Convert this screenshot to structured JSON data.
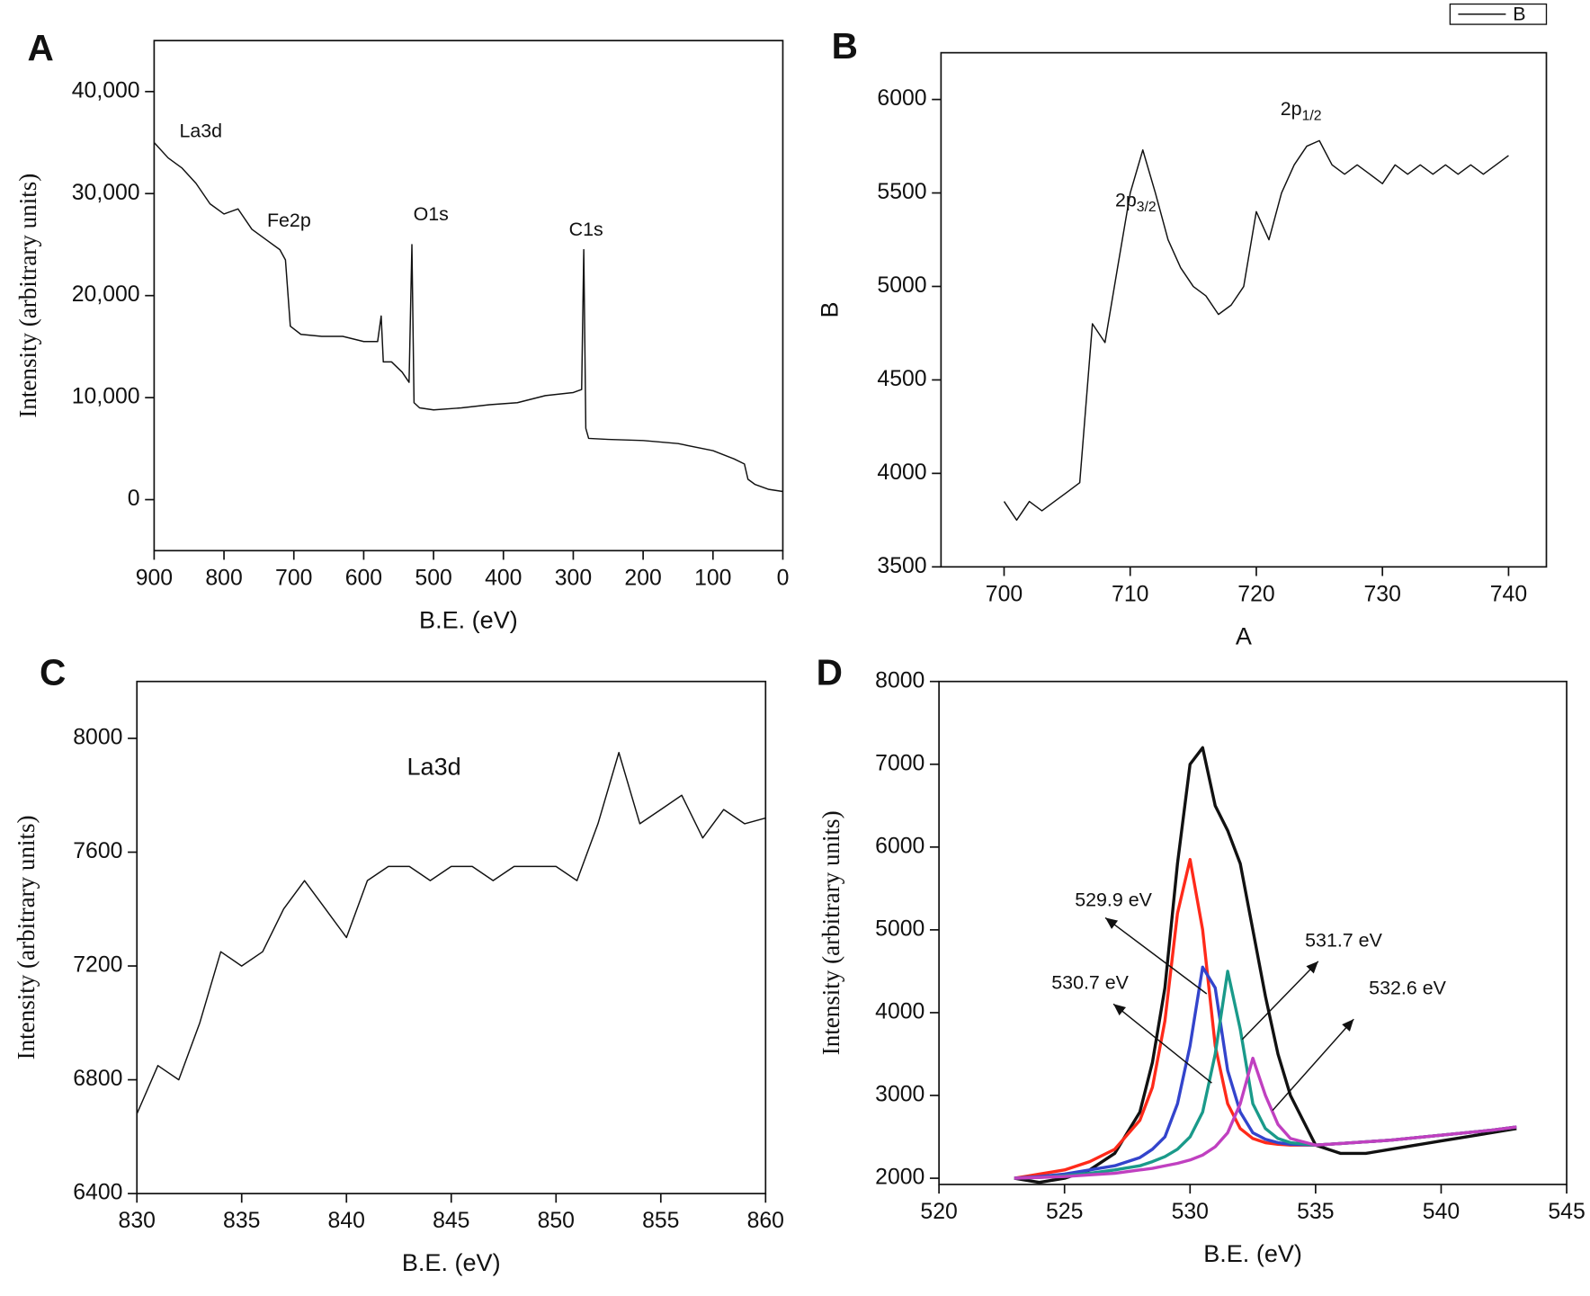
{
  "chart_data": [
    {
      "type": "line",
      "panel_label": "A",
      "xlabel": "B.E. (eV)",
      "ylabel": "Intensity (arbitrary units)",
      "xlim": [
        900,
        0
      ],
      "xticks": [
        900,
        800,
        700,
        600,
        500,
        400,
        300,
        200,
        100,
        0
      ],
      "ylim": [
        -5000,
        45000
      ],
      "yticks": [
        0,
        {
          "value": 10000,
          "label": "10,000"
        },
        {
          "value": 20000,
          "label": "20,000"
        },
        {
          "value": 30000,
          "label": "30,000"
        },
        {
          "value": 40000,
          "label": "40,000"
        }
      ],
      "x": [
        900,
        880,
        860,
        840,
        820,
        800,
        780,
        760,
        740,
        720,
        712,
        705,
        690,
        660,
        630,
        600,
        580,
        575,
        572,
        560,
        545,
        535,
        531,
        528,
        520,
        500,
        460,
        420,
        380,
        340,
        300,
        288,
        285,
        282,
        278,
        250,
        200,
        150,
        100,
        70,
        55,
        50,
        40,
        20,
        0
      ],
      "series": [
        {
          "color": "#111111",
          "values": [
            35000,
            33500,
            32500,
            31000,
            29000,
            28000,
            28500,
            26500,
            25500,
            24500,
            23500,
            17000,
            16200,
            16000,
            16000,
            15500,
            15500,
            18000,
            13500,
            13500,
            12500,
            11500,
            25000,
            9500,
            9000,
            8800,
            9000,
            9300,
            9500,
            10200,
            10500,
            10800,
            24500,
            7000,
            6000,
            5900,
            5800,
            5500,
            4800,
            4000,
            3500,
            2000,
            1500,
            1000,
            800
          ]
        }
      ],
      "annotations": [
        {
          "text": "La3d"
        },
        {
          "text": "Fe2p"
        },
        {
          "text": "O1s"
        },
        {
          "text": "C1s"
        }
      ]
    },
    {
      "type": "line",
      "panel_label": "B",
      "xlabel": "A",
      "ylabel": "B",
      "xlim": [
        695,
        743
      ],
      "xticks": [
        700,
        710,
        720,
        730,
        740
      ],
      "ylim": [
        3500,
        6250
      ],
      "yticks": [
        3500,
        4000,
        4500,
        5000,
        5500,
        6000
      ],
      "x": [
        700,
        701,
        702,
        703,
        704,
        705,
        706,
        707,
        708,
        709,
        710,
        711,
        712,
        713,
        714,
        715,
        716,
        717,
        718,
        719,
        720,
        721,
        722,
        723,
        724,
        725,
        726,
        727,
        728,
        729,
        730,
        731,
        732,
        733,
        734,
        735,
        736,
        737,
        738,
        739,
        740
      ],
      "series": [
        {
          "name": "B",
          "color": "#111111",
          "values": [
            3850,
            3750,
            3850,
            3800,
            3850,
            3900,
            3950,
            4800,
            4700,
            5100,
            5500,
            5730,
            5500,
            5250,
            5100,
            5000,
            4950,
            4850,
            4900,
            5000,
            5400,
            5250,
            5500,
            5650,
            5750,
            5780,
            5650,
            5600,
            5650,
            5600,
            5550,
            5650,
            5600,
            5650,
            5600,
            5650,
            5600,
            5650,
            5600,
            5650,
            5700
          ]
        }
      ],
      "legend": "top-right",
      "annotations": [
        {
          "text": "2p",
          "sub": "3/2"
        },
        {
          "text": "2p",
          "sub": "1/2"
        }
      ]
    },
    {
      "type": "line",
      "panel_label": "C",
      "xlabel": "B.E. (eV)",
      "ylabel": "Intensity (arbitrary units)",
      "xlim": [
        830,
        860
      ],
      "xticks": [
        830,
        835,
        840,
        845,
        850,
        855,
        860
      ],
      "ylim": [
        6400,
        8200
      ],
      "yticks": [
        6400,
        6800,
        7200,
        7600,
        8000
      ],
      "x": [
        830,
        831,
        832,
        833,
        834,
        835,
        836,
        837,
        838,
        839,
        840,
        841,
        842,
        843,
        844,
        845,
        846,
        847,
        848,
        849,
        850,
        851,
        852,
        853,
        854,
        855,
        856,
        857,
        858,
        859,
        860
      ],
      "series": [
        {
          "color": "#111111",
          "values": [
            6680,
            6850,
            6800,
            7000,
            7250,
            7200,
            7250,
            7400,
            7500,
            7400,
            7300,
            7500,
            7550,
            7550,
            7500,
            7550,
            7550,
            7500,
            7550,
            7550,
            7550,
            7500,
            7700,
            7950,
            7700,
            7750,
            7800,
            7650,
            7750,
            7700,
            7720
          ]
        }
      ],
      "annotations": [
        {
          "text": "La3d"
        }
      ]
    },
    {
      "type": "line",
      "panel_label": "D",
      "xlabel": "B.E. (eV)",
      "ylabel": "Intensity (arbitrary units)",
      "xlim": [
        520,
        545
      ],
      "xticks": [
        520,
        525,
        530,
        535,
        540,
        545
      ],
      "ylim": [
        1925,
        8000
      ],
      "yticks": [
        2000,
        3000,
        4000,
        5000,
        6000,
        7000,
        8000
      ],
      "x": [
        523,
        524,
        525,
        526,
        527,
        528,
        528.5,
        529,
        529.5,
        530,
        530.5,
        531,
        531.5,
        532,
        532.5,
        533,
        533.5,
        534,
        535,
        536,
        537,
        538,
        539,
        540,
        541,
        542,
        543
      ],
      "series": [
        {
          "color": "#111111",
          "values": [
            2000,
            1950,
            2000,
            2100,
            2300,
            2800,
            3400,
            4300,
            5800,
            7000,
            7200,
            6500,
            6200,
            5800,
            5000,
            4200,
            3500,
            3000,
            2400,
            2300,
            2300,
            2350,
            2400,
            2450,
            2500,
            2550,
            2600
          ]
        },
        {
          "color": "#ff2a1a",
          "values": [
            2000,
            2050,
            2100,
            2200,
            2350,
            2700,
            3100,
            3900,
            5200,
            5850,
            5000,
            3600,
            2900,
            2600,
            2480,
            2430,
            2410,
            2400,
            2400,
            2420,
            2440,
            2460,
            2490,
            2520,
            2550,
            2580,
            2620
          ]
        },
        {
          "color": "#3344cc",
          "values": [
            2000,
            2020,
            2050,
            2100,
            2150,
            2250,
            2350,
            2500,
            2900,
            3600,
            4550,
            4300,
            3300,
            2800,
            2550,
            2470,
            2430,
            2410,
            2400,
            2420,
            2440,
            2460,
            2490,
            2520,
            2550,
            2580,
            2620
          ]
        },
        {
          "color": "#1a9a8a",
          "values": [
            2000,
            2010,
            2030,
            2060,
            2100,
            2150,
            2200,
            2260,
            2350,
            2500,
            2800,
            3500,
            4500,
            3800,
            2900,
            2600,
            2480,
            2430,
            2400,
            2420,
            2440,
            2460,
            2490,
            2520,
            2550,
            2580,
            2620
          ]
        },
        {
          "color": "#c040c0",
          "values": [
            2000,
            2010,
            2020,
            2040,
            2060,
            2100,
            2120,
            2150,
            2180,
            2220,
            2280,
            2380,
            2550,
            2900,
            3450,
            3000,
            2650,
            2480,
            2400,
            2420,
            2440,
            2460,
            2490,
            2520,
            2550,
            2580,
            2620
          ]
        }
      ],
      "annotations": [
        {
          "text": "529.9 eV"
        },
        {
          "text": "530.7 eV"
        },
        {
          "text": "531.7 eV"
        },
        {
          "text": "532.6 eV"
        }
      ]
    }
  ]
}
